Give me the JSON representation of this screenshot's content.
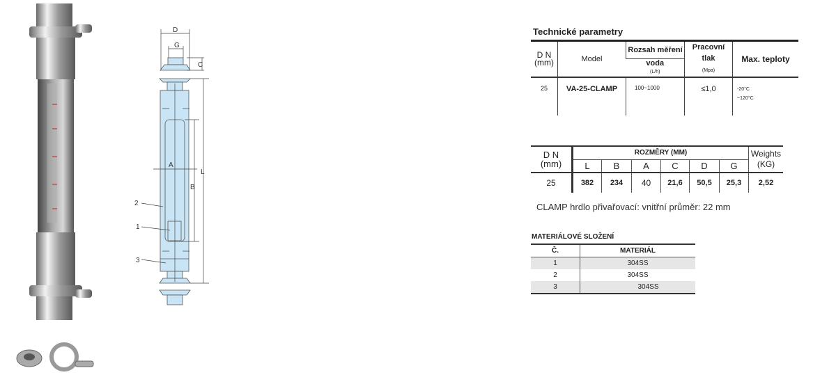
{
  "tech": {
    "title": "Technické parametry",
    "headers": {
      "dn": "D N\n(mm)",
      "model": "Model",
      "range": "Rozsah měření",
      "water": "voda",
      "water_unit": "(L/h)",
      "pressure": "Pracovní tlak",
      "pressure_unit": "(Mpa)",
      "temp": "Max. teploty"
    },
    "row": {
      "dn": "25",
      "model": "VA-25-CLAMP",
      "range": "100~1000",
      "pressure": "≤1,0",
      "temp1": "-20°C",
      "temp2": "~120°C"
    }
  },
  "dims": {
    "dn_header": "D N\n(mm)",
    "group_header": "ROZMĚRY (MM)",
    "weight_header": "Weights\n(KG)",
    "columns": [
      "L",
      "B",
      "A",
      "C",
      "D",
      "G"
    ],
    "row": {
      "dn": "25",
      "values": [
        "382",
        "234",
        "40",
        "21,6",
        "50,5",
        "25,3"
      ],
      "weight": "2,52"
    }
  },
  "note": "CLAMP hrdlo přivařovací: vnitřní průměr: 22  mm",
  "materials": {
    "title": "MATERIÁLOVÉ SLOŽENÍ",
    "headers": [
      "Č.",
      "MATERIÁL"
    ],
    "rows": [
      [
        "1",
        "304SS"
      ],
      [
        "2",
        "304SS"
      ],
      [
        "3",
        "304SS"
      ]
    ]
  },
  "drawing": {
    "labels": {
      "D": "D",
      "G": "G",
      "C": "C",
      "A": "A",
      "B": "B",
      "L": "L",
      "p1": "1",
      "p2": "2",
      "p3": "3"
    },
    "fill": "#c9e4f4"
  }
}
